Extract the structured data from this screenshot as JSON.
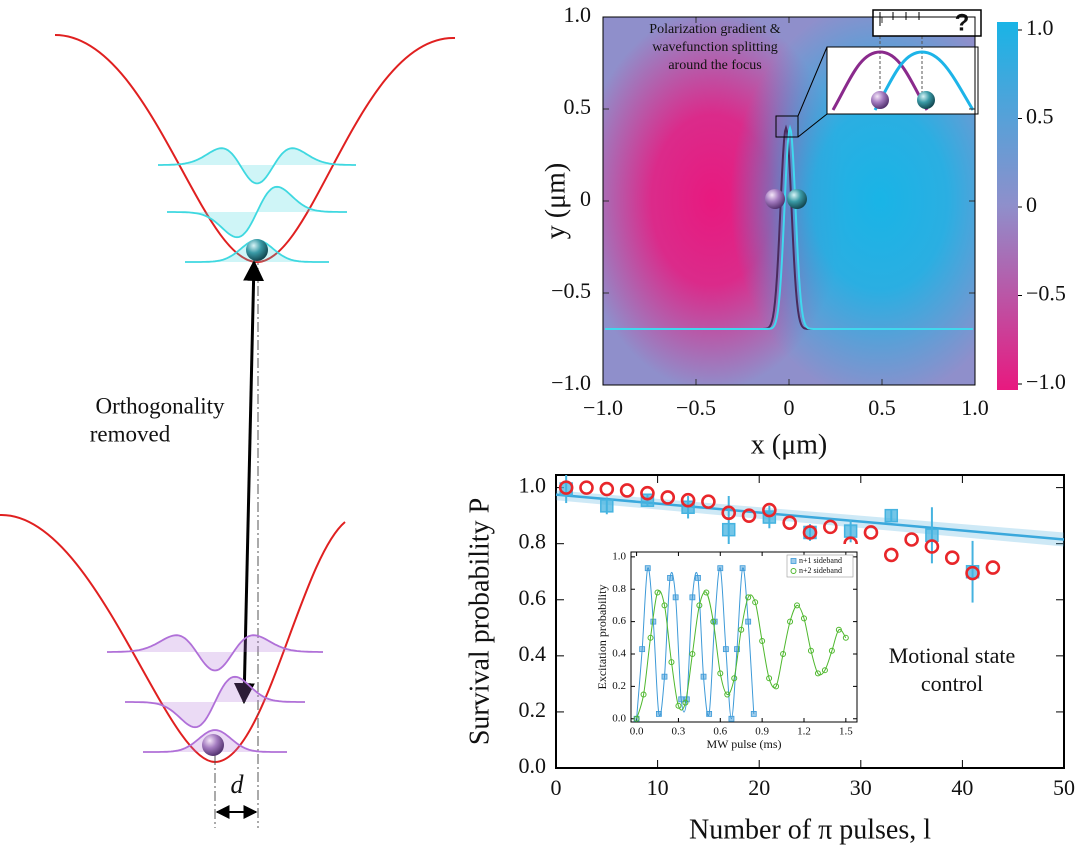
{
  "diagram": {
    "label": [
      "Orthogonality",
      "removed"
    ],
    "distance_label": "d"
  },
  "chart_data": [
    {
      "type": "heatmap",
      "annotation": [
        "Polarization gradient &",
        "wavefunction splitting",
        "around the focus"
      ],
      "inset_label": "?",
      "xlabel": "x (μm)",
      "ylabel": "y (μm)",
      "xlim": [
        -1,
        1
      ],
      "ylim": [
        -1,
        1
      ],
      "xticks": [
        {
          "value": -1,
          "label": "−1.0"
        },
        {
          "value": -0.5,
          "label": "−0.5"
        },
        0,
        0.5,
        {
          "value": 1,
          "label": "1.0"
        }
      ],
      "yticks": [
        {
          "value": -1,
          "label": "−1.0"
        },
        {
          "value": -0.5,
          "label": "−0.5"
        },
        0,
        0.5,
        {
          "value": 1,
          "label": "1.0"
        }
      ],
      "colorbar": {
        "lim": [
          -1,
          1
        ],
        "colors": [
          "#e8197f",
          "#8f8fcb",
          "#19b4e6"
        ],
        "ticks": [
          {
            "value": -1,
            "label": "−1.0"
          },
          {
            "value": -0.5,
            "label": "−0.5"
          },
          0,
          0.5,
          {
            "value": 1,
            "label": "1.0"
          }
        ]
      }
    },
    {
      "type": "scatter",
      "xlabel": "Number of π pulses, l",
      "ylabel": "Survival probability P",
      "annotation": [
        "Motional state",
        "control"
      ],
      "xlim": [
        0,
        50
      ],
      "ylim": [
        0,
        1.045
      ],
      "xticks": [
        0,
        10,
        20,
        30,
        40,
        50
      ],
      "yticks": [
        {
          "value": 0,
          "label": "0.0"
        },
        0.2,
        0.4,
        0.6,
        0.8,
        {
          "value": 1,
          "label": "1.0"
        }
      ],
      "series": [
        {
          "kind": "fit",
          "color": "#3aa8dc",
          "x": [
            0,
            50
          ],
          "values": [
            0.975,
            0.815
          ],
          "band_lower": [
            0.955,
            0.79
          ],
          "band_upper": [
            0.99,
            0.84
          ]
        },
        {
          "marker": "square",
          "color": "#45b3e0",
          "x": [
            1,
            5,
            9,
            13,
            17,
            21,
            25,
            29,
            33,
            37,
            41
          ],
          "values": [
            0.995,
            0.935,
            0.955,
            0.93,
            0.85,
            0.895,
            0.84,
            0.845,
            0.9,
            0.83,
            0.7
          ],
          "errors": [
            0.05,
            0.03,
            0.02,
            0.04,
            0.12,
            0.04,
            0.03,
            0.04,
            0.02,
            0.1,
            0.11
          ]
        },
        {
          "marker": "circle",
          "color": "#e8262a",
          "x": [
            1,
            3,
            5,
            7,
            9,
            11,
            13,
            15,
            17,
            19,
            21,
            23,
            25,
            27,
            29,
            31,
            33,
            35,
            37,
            39,
            41,
            43
          ],
          "values": [
            1.0,
            1.0,
            0.995,
            0.99,
            0.98,
            0.965,
            0.955,
            0.95,
            0.91,
            0.9,
            0.92,
            0.875,
            0.84,
            0.86,
            0.8,
            0.84,
            0.76,
            0.815,
            0.79,
            0.75,
            0.695,
            0.715
          ]
        }
      ]
    },
    {
      "type": "scatter",
      "xlabel": "MW pulse (ms)",
      "ylabel": "Excitation probability",
      "legend": "upper right",
      "xlim": [
        -0.04,
        1.58
      ],
      "ylim": [
        -0.02,
        1.03
      ],
      "xticks": [
        {
          "value": 0,
          "label": "0.0"
        },
        0.3,
        0.6,
        0.9,
        1.2,
        1.5
      ],
      "yticks": [
        {
          "value": 0,
          "label": "0.0"
        },
        0.2,
        0.4,
        0.6,
        0.8,
        {
          "value": 1,
          "label": "1.0"
        }
      ],
      "series": [
        {
          "name": "n+1 sideband",
          "marker": "square",
          "color": "#3d9ad8",
          "smooth": true,
          "x": [
            0,
            0.04,
            0.08,
            0.12,
            0.16,
            0.2,
            0.24,
            0.28,
            0.32,
            0.36,
            0.4,
            0.44,
            0.48,
            0.52,
            0.56,
            0.6,
            0.64,
            0.68,
            0.72,
            0.76,
            0.8,
            0.84
          ],
          "values": [
            0,
            0.43,
            0.93,
            0.6,
            0.03,
            0.26,
            0.87,
            0.75,
            0.12,
            0.12,
            0.75,
            0.87,
            0.26,
            0.03,
            0.6,
            0.93,
            0.43,
            0,
            0.43,
            0.93,
            0.6,
            0.03
          ]
        },
        {
          "name": "n+2 sideband",
          "marker": "circle",
          "color": "#4fb82e",
          "smooth": true,
          "x": [
            0,
            0.05,
            0.1,
            0.15,
            0.2,
            0.25,
            0.3,
            0.35,
            0.4,
            0.45,
            0.5,
            0.55,
            0.6,
            0.65,
            0.7,
            0.75,
            0.8,
            0.85,
            0.9,
            0.95,
            1,
            1.05,
            1.1,
            1.15,
            1.2,
            1.25,
            1.3,
            1.35,
            1.4,
            1.45,
            1.5
          ],
          "values": [
            0,
            0.15,
            0.5,
            0.78,
            0.7,
            0.35,
            0.08,
            0.1,
            0.4,
            0.7,
            0.78,
            0.6,
            0.28,
            0.15,
            0.25,
            0.55,
            0.75,
            0.72,
            0.48,
            0.25,
            0.2,
            0.4,
            0.6,
            0.7,
            0.62,
            0.42,
            0.28,
            0.3,
            0.42,
            0.55,
            0.5
          ]
        }
      ]
    }
  ]
}
